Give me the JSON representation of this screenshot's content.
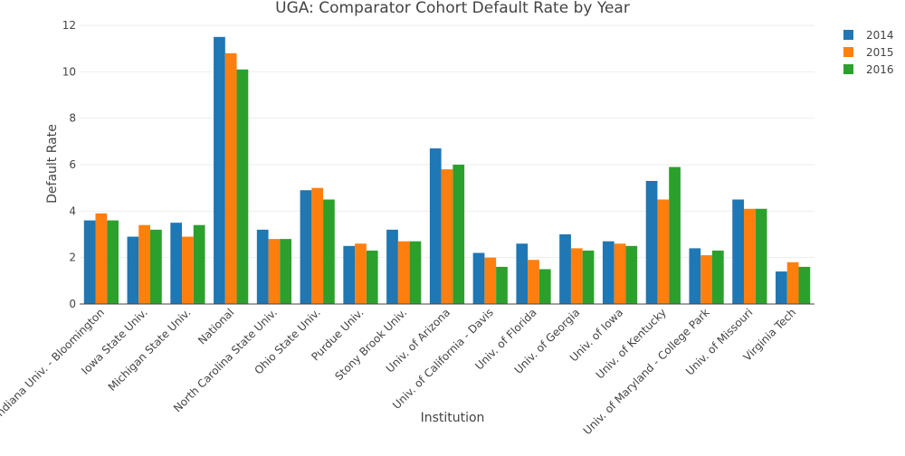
{
  "chart_data": {
    "type": "bar",
    "title": "UGA: Comparator Cohort Default Rate by Year",
    "xlabel": "Institution",
    "ylabel": "Default Rate",
    "ylim": [
      0,
      12
    ],
    "yticks": [
      0,
      2,
      4,
      6,
      8,
      10,
      12
    ],
    "grid": true,
    "legend_position": "top-right",
    "categories": [
      "Indiana Univ. - Bloomington",
      "Iowa State Univ.",
      "Michigan State Univ.",
      "National",
      "North Carolina State Univ.",
      "Ohio State Univ.",
      "Purdue Univ.",
      "Stony Brook Univ.",
      "Univ. of Arizona",
      "Univ. of California - Davis",
      "Univ. of Florida",
      "Univ. of Georgia",
      "Univ. of Iowa",
      "Univ. of Kentucky",
      "Univ. of Maryland - College Park",
      "Univ. of Missouri",
      "Virginia Tech"
    ],
    "series": [
      {
        "name": "2014",
        "color": "#1f77b4",
        "values": [
          3.6,
          2.9,
          3.5,
          11.5,
          3.2,
          4.9,
          2.5,
          3.2,
          6.7,
          2.2,
          2.6,
          3.0,
          2.7,
          5.3,
          2.4,
          4.5,
          1.4
        ]
      },
      {
        "name": "2015",
        "color": "#ff7f0e",
        "values": [
          3.9,
          3.4,
          2.9,
          10.8,
          2.8,
          5.0,
          2.6,
          2.7,
          5.8,
          2.0,
          1.9,
          2.4,
          2.6,
          4.5,
          2.1,
          4.1,
          1.8
        ]
      },
      {
        "name": "2016",
        "color": "#2ca02c",
        "values": [
          3.6,
          3.2,
          3.4,
          10.1,
          2.8,
          4.5,
          2.3,
          2.7,
          6.0,
          1.6,
          1.5,
          2.3,
          2.5,
          5.9,
          2.3,
          4.1,
          1.6
        ]
      }
    ]
  }
}
